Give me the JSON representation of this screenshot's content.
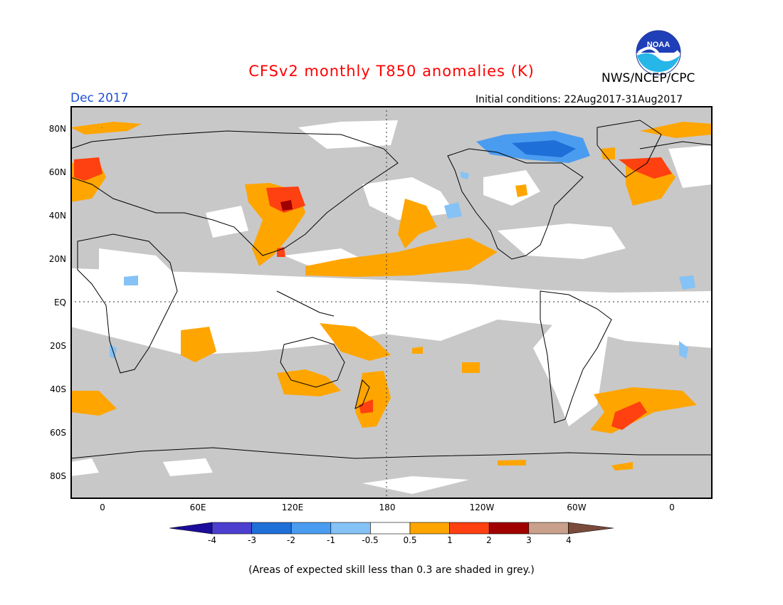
{
  "title": "CFSv2 monthly T850 anomalies (K)",
  "agency": "NWS/NCEP/CPC",
  "month": "Dec 2017",
  "initial_conditions": "Initial conditions: 22Aug2017-31Aug2017",
  "logo_text": "NOAA",
  "lat_labels": [
    "80N",
    "60N",
    "40N",
    "20N",
    "EQ",
    "20S",
    "40S",
    "60S",
    "80S"
  ],
  "lon_labels": [
    "0",
    "60E",
    "120E",
    "180",
    "120W",
    "60W",
    "0"
  ],
  "colorbar": {
    "labels": [
      "-4",
      "-3",
      "-2",
      "-1",
      "-0.5",
      "0.5",
      "1",
      "2",
      "3",
      "4"
    ],
    "colors": [
      "#1b0c9c",
      "#4c3fcf",
      "#1f6fd8",
      "#4a9cf0",
      "#85c2f5",
      "#ffffff",
      "#ffa500",
      "#ff4010",
      "#a00000",
      "#c8a08c",
      "#7a4a3a"
    ]
  },
  "footnote": "(Areas of expected skill less than 0.3 are shaded in grey.)",
  "colors": {
    "title": "#ff0000",
    "month": "#1f4fd8",
    "skill_grey": "#c8c8c8"
  }
}
